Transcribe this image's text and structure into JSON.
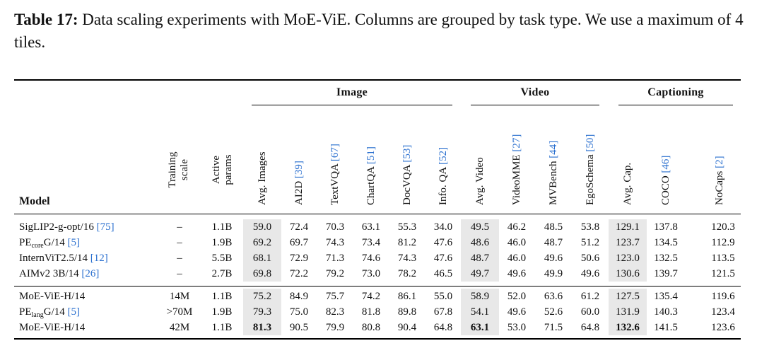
{
  "caption": {
    "label": "Table 17:",
    "text": " Data scaling experiments with MoE-ViE. Columns are grouped by task type. We use a maximum of 4 tiles."
  },
  "groups": [
    {
      "name": "Image"
    },
    {
      "name": "Video"
    },
    {
      "name": "Captioning"
    }
  ],
  "header": {
    "model": "Model",
    "training_scale": [
      "Training",
      "scale"
    ],
    "active_params": [
      "Active",
      "params"
    ],
    "columns": [
      {
        "label": "Avg. Images",
        "ref": ""
      },
      {
        "label": "AI2D ",
        "ref": "[39]"
      },
      {
        "label": "TextVQA ",
        "ref": "[67]"
      },
      {
        "label": "ChartQA ",
        "ref": "[51]"
      },
      {
        "label": "DocVQA ",
        "ref": "[53]"
      },
      {
        "label": "Info. QA ",
        "ref": "[52]"
      },
      {
        "label": "Avg. Video",
        "ref": ""
      },
      {
        "label": "VideoMME ",
        "ref": "[27]"
      },
      {
        "label": "MVBench ",
        "ref": "[44]"
      },
      {
        "label": "EgoSchema ",
        "ref": "[50]"
      },
      {
        "label": "Avg. Cap.",
        "ref": ""
      },
      {
        "label": "COCO ",
        "ref": "[46]"
      },
      {
        "label": "NoCaps ",
        "ref": "[2]"
      }
    ]
  },
  "rows": [
    {
      "model": "SigLIP2-g-opt/16 ",
      "ref": "[75]",
      "sub": "",
      "suffix": "",
      "scale": "–",
      "params": "1.1B",
      "values": [
        "59.0",
        "72.4",
        "70.3",
        "63.1",
        "55.3",
        "34.0",
        "49.5",
        "46.2",
        "48.5",
        "53.8",
        "129.1",
        "137.8",
        "120.3"
      ],
      "bold": []
    },
    {
      "model": "PE",
      "sub": "core",
      "suffix": "G/14 ",
      "ref": "[5]",
      "scale": "–",
      "params": "1.9B",
      "values": [
        "69.2",
        "69.7",
        "74.3",
        "73.4",
        "81.2",
        "47.6",
        "48.6",
        "46.0",
        "48.7",
        "51.2",
        "123.7",
        "134.5",
        "112.9"
      ],
      "bold": []
    },
    {
      "model": "InternViT2.5/14 ",
      "ref": "[12]",
      "sub": "",
      "suffix": "",
      "scale": "–",
      "params": "5.5B",
      "values": [
        "68.1",
        "72.9",
        "71.3",
        "74.6",
        "74.3",
        "47.6",
        "48.7",
        "46.0",
        "49.6",
        "50.6",
        "123.0",
        "132.5",
        "113.5"
      ],
      "bold": []
    },
    {
      "model": "AIMv2 3B/14 ",
      "ref": "[26]",
      "sub": "",
      "suffix": "",
      "scale": "–",
      "params": "2.7B",
      "values": [
        "69.8",
        "72.2",
        "79.2",
        "73.0",
        "78.2",
        "46.5",
        "49.7",
        "49.6",
        "49.9",
        "49.6",
        "130.6",
        "139.7",
        "121.5"
      ],
      "bold": []
    },
    {
      "model": "MoE-ViE-H/14",
      "ref": "",
      "sub": "",
      "suffix": "",
      "scale": "14M",
      "params": "1.1B",
      "values": [
        "75.2",
        "84.9",
        "75.7",
        "74.2",
        "86.1",
        "55.0",
        "58.9",
        "52.0",
        "63.6",
        "61.2",
        "127.5",
        "135.4",
        "119.6"
      ],
      "bold": []
    },
    {
      "model": "PE",
      "sub": "lang",
      "suffix": "G/14 ",
      "ref": "[5]",
      "scale": ">70M",
      "params": "1.9B",
      "values": [
        "79.3",
        "75.0",
        "82.3",
        "81.8",
        "89.8",
        "67.8",
        "54.1",
        "49.6",
        "52.6",
        "60.0",
        "131.9",
        "140.3",
        "123.4"
      ],
      "bold": []
    },
    {
      "model": "MoE-ViE-H/14",
      "ref": "",
      "sub": "",
      "suffix": "",
      "scale": "42M",
      "params": "1.1B",
      "values": [
        "81.3",
        "90.5",
        "79.9",
        "80.8",
        "90.4",
        "64.8",
        "63.1",
        "53.0",
        "71.5",
        "64.8",
        "132.6",
        "141.5",
        "123.6"
      ],
      "bold": [
        0,
        6,
        10
      ]
    }
  ]
}
